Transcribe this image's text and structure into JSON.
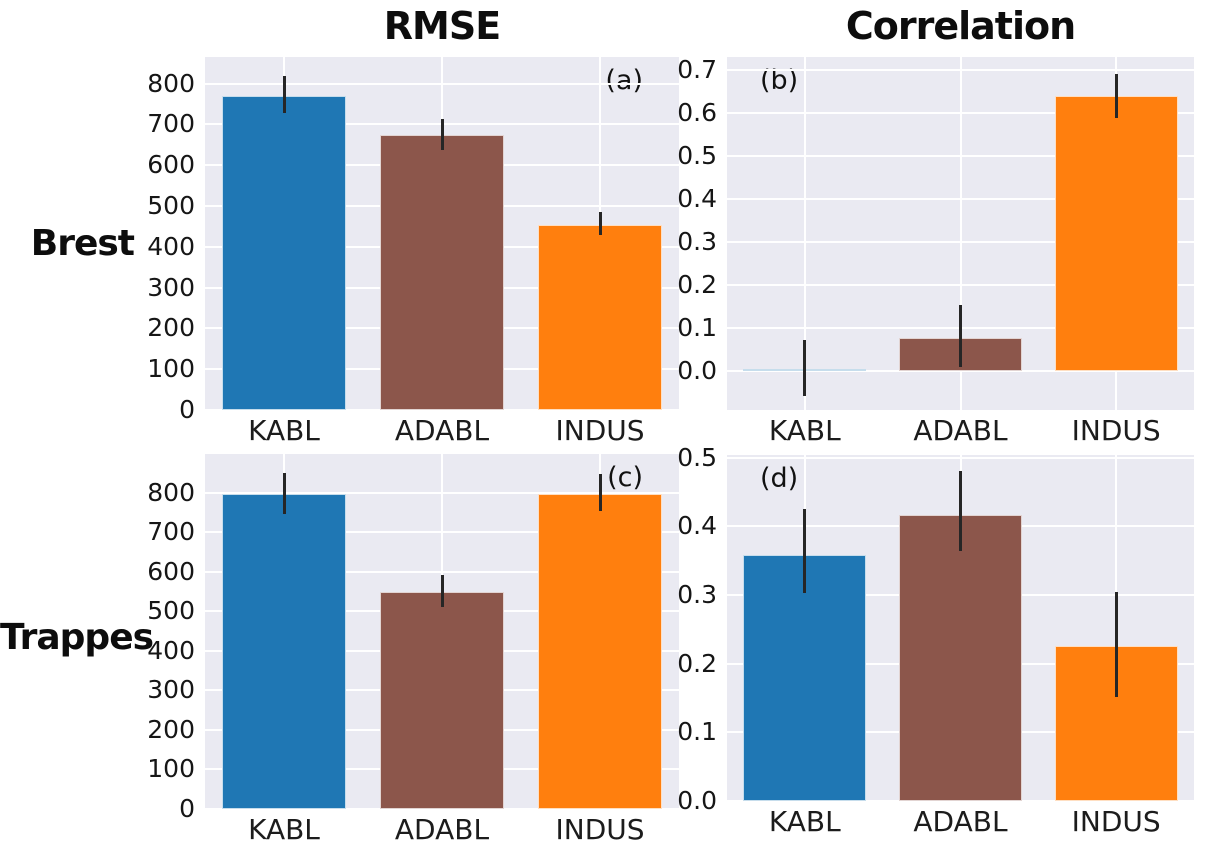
{
  "figure": {
    "column_titles": {
      "left": "RMSE",
      "right": "Correlation"
    },
    "row_labels": {
      "top": "Brest",
      "bottom": "Trappes"
    },
    "colors": {
      "bar_kabl": "#1f77b4",
      "bar_adabl": "#8c564b",
      "bar_indus": "#ff7f0e",
      "panel_background": "#eaeaf2",
      "gridline": "#ffffff",
      "error_bar": "#262626",
      "text": "#111111"
    }
  },
  "chart_data": [
    {
      "type": "bar",
      "panel_label": "(a)",
      "station": "Brest",
      "metric": "RMSE",
      "categories": [
        "KABL",
        "ADABL",
        "INDUS"
      ],
      "values": [
        770,
        673,
        454
      ],
      "error_low": [
        728,
        636,
        428
      ],
      "error_high": [
        818,
        713,
        485
      ],
      "ylim": [
        0,
        865
      ],
      "ytick_values": [
        0,
        100,
        200,
        300,
        400,
        500,
        600,
        700,
        800
      ],
      "ytick_labels": [
        "0",
        "100",
        "200",
        "300",
        "400",
        "500",
        "600",
        "700",
        "800"
      ],
      "grid": true,
      "legend": "none"
    },
    {
      "type": "bar",
      "panel_label": "(b)",
      "station": "Brest",
      "metric": "Correlation",
      "categories": [
        "KABL",
        "ADABL",
        "INDUS"
      ],
      "values": [
        0.005,
        0.078,
        0.64
      ],
      "error_low": [
        -0.057,
        0.011,
        0.588
      ],
      "error_high": [
        0.072,
        0.153,
        0.691
      ],
      "ylim": [
        -0.09,
        0.73
      ],
      "ytick_values": [
        0.0,
        0.1,
        0.2,
        0.3,
        0.4,
        0.5,
        0.6,
        0.7
      ],
      "ytick_labels": [
        "0.0",
        "0.1",
        "0.2",
        "0.3",
        "0.4",
        "0.5",
        "0.6",
        "0.7"
      ],
      "grid": true,
      "legend": "none"
    },
    {
      "type": "bar",
      "panel_label": "(c)",
      "station": "Trappes",
      "metric": "RMSE",
      "categories": [
        "KABL",
        "ADABL",
        "INDUS"
      ],
      "values": [
        798,
        550,
        798
      ],
      "error_low": [
        746,
        511,
        754
      ],
      "error_high": [
        851,
        592,
        847
      ],
      "ylim": [
        0,
        898
      ],
      "ytick_values": [
        0,
        100,
        200,
        300,
        400,
        500,
        600,
        700,
        800
      ],
      "ytick_labels": [
        "0",
        "100",
        "200",
        "300",
        "400",
        "500",
        "600",
        "700",
        "800"
      ],
      "grid": true,
      "legend": "none"
    },
    {
      "type": "bar",
      "panel_label": "(d)",
      "station": "Trappes",
      "metric": "Correlation",
      "categories": [
        "KABL",
        "ADABL",
        "INDUS"
      ],
      "values": [
        0.358,
        0.416,
        0.226
      ],
      "error_low": [
        0.303,
        0.364,
        0.151
      ],
      "error_high": [
        0.425,
        0.48,
        0.304
      ],
      "ylim": [
        0,
        0.504
      ],
      "ytick_values": [
        0.0,
        0.1,
        0.2,
        0.3,
        0.4,
        0.5
      ],
      "ytick_labels": [
        "0.0",
        "0.1",
        "0.2",
        "0.3",
        "0.4",
        "0.5"
      ],
      "grid": true,
      "legend": "none"
    }
  ]
}
